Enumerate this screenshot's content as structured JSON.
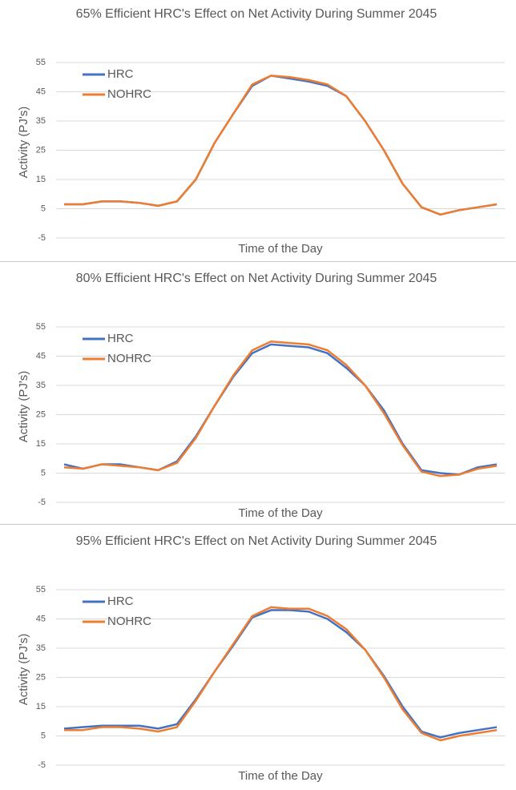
{
  "chart_data": [
    {
      "type": "line",
      "title": "65% Efficient HRC's Effect on Net Activity During Summer 2045",
      "y_label": "Activity (PJ's)",
      "x_label": "Time of the Day",
      "ylim": [
        -5,
        55
      ],
      "yticks": [
        -5,
        5,
        15,
        25,
        35,
        45,
        55
      ],
      "grid": true,
      "legend": "top-left",
      "series": [
        {
          "name": "HRC",
          "color": "#4472c4",
          "values": [
            6.5,
            6.5,
            7.5,
            7.5,
            7,
            6,
            7.5,
            15,
            27.5,
            37.5,
            47,
            50.5,
            49.5,
            48.5,
            47,
            43.5,
            35,
            25,
            13.5,
            5.5,
            3,
            4.5,
            5.5,
            6.5
          ]
        },
        {
          "name": "NOHRC",
          "color": "#ed7d31",
          "values": [
            6.5,
            6.5,
            7.5,
            7.5,
            7,
            6,
            7.5,
            15,
            27.5,
            37.5,
            47.5,
            50.5,
            50,
            49,
            47.5,
            43.5,
            35,
            25,
            13.5,
            5.5,
            3,
            4.5,
            5.5,
            6.5
          ]
        }
      ]
    },
    {
      "type": "line",
      "title": "80% Efficient HRC's Effect on Net Activity During Summer 2045",
      "y_label": "Activity (PJ's)",
      "x_label": "Time of the Day",
      "ylim": [
        -5,
        55
      ],
      "yticks": [
        -5,
        5,
        15,
        25,
        35,
        45,
        55
      ],
      "grid": true,
      "legend": "top-left",
      "series": [
        {
          "name": "HRC",
          "color": "#4472c4",
          "values": [
            8,
            6.5,
            8,
            8,
            7,
            6,
            9,
            17.5,
            28,
            38,
            46,
            49,
            48.5,
            48,
            46,
            41,
            35,
            26.5,
            15,
            6,
            5,
            4.5,
            7,
            8
          ]
        },
        {
          "name": "NOHRC",
          "color": "#ed7d31",
          "values": [
            7,
            6.5,
            8,
            7.5,
            7,
            6,
            8.5,
            17,
            28,
            38.5,
            47,
            50,
            49.5,
            49,
            47,
            42,
            35,
            25.5,
            14.5,
            5.5,
            4,
            4.5,
            6.5,
            7.5
          ]
        }
      ]
    },
    {
      "type": "line",
      "title": "95% Efficient HRC's Effect on Net Activity During Summer 2045",
      "y_label": "Activity (PJ's)",
      "x_label": "Time of the Day",
      "ylim": [
        -5,
        55
      ],
      "yticks": [
        -5,
        5,
        15,
        25,
        35,
        45,
        55
      ],
      "grid": true,
      "legend": "top-left",
      "series": [
        {
          "name": "HRC",
          "color": "#4472c4",
          "values": [
            7.5,
            8,
            8.5,
            8.5,
            8.5,
            7.5,
            9,
            17.5,
            27,
            36,
            45.5,
            48,
            48,
            47.5,
            45,
            40.5,
            34.5,
            25.5,
            15,
            6.5,
            4.5,
            6,
            7,
            8
          ]
        },
        {
          "name": "NOHRC",
          "color": "#ed7d31",
          "values": [
            7,
            7,
            8,
            8,
            7.5,
            6.5,
            8,
            17,
            27,
            36.5,
            46,
            49,
            48.5,
            48.5,
            46,
            41.5,
            34.5,
            25,
            14,
            6,
            3.5,
            5,
            6,
            7
          ]
        }
      ]
    }
  ]
}
